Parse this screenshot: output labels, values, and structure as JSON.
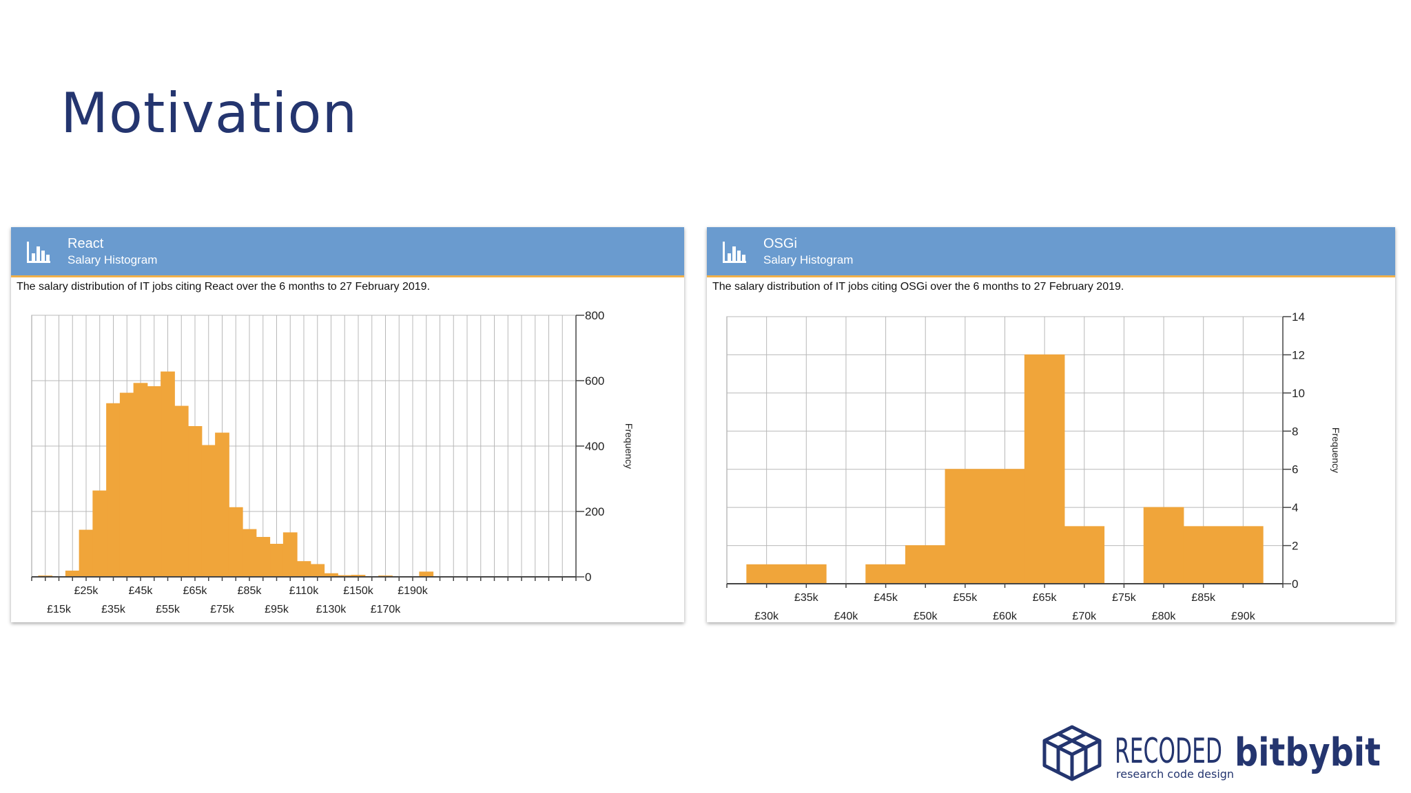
{
  "slide": {
    "title": "Motivation"
  },
  "panels": [
    {
      "name": "React",
      "subtitle": "Salary Histogram",
      "description": "The salary distribution of IT jobs citing React over the 6 months to 27 February 2019."
    },
    {
      "name": "OSGi",
      "subtitle": "Salary Histogram",
      "description": "The salary distribution of IT jobs citing OSGi over the 6 months to 27 February 2019."
    }
  ],
  "logos": {
    "recoded_main": "RECODED",
    "recoded_tagline": "research code design",
    "bitbybit": "bitbybit"
  },
  "colors": {
    "header": "#6a9bcf",
    "bar": "#f0a53a",
    "accent": "#f0b04a",
    "title": "#24356f"
  },
  "chart_data": [
    {
      "type": "bar",
      "title": "React Salary Histogram",
      "ylabel": "Frequency",
      "xlabel": "",
      "xlim": [
        0,
        200
      ],
      "ylim": [
        0,
        800
      ],
      "yticks": [
        0,
        200,
        400,
        600,
        800
      ],
      "x_tick_labels_upper": [
        {
          "x": 20,
          "label": "£25k"
        },
        {
          "x": 40,
          "label": "£45k"
        },
        {
          "x": 60,
          "label": "£65k"
        },
        {
          "x": 80,
          "label": "£85k"
        },
        {
          "x": 100,
          "label": "£110k"
        },
        {
          "x": 120,
          "label": "£150k"
        },
        {
          "x": 140,
          "label": "£190k"
        }
      ],
      "x_tick_labels_lower": [
        {
          "x": 10,
          "label": "£15k"
        },
        {
          "x": 30,
          "label": "£35k"
        },
        {
          "x": 50,
          "label": "£55k"
        },
        {
          "x": 70,
          "label": "£75k"
        },
        {
          "x": 90,
          "label": "£95k"
        },
        {
          "x": 110,
          "label": "£130k"
        },
        {
          "x": 130,
          "label": "£170k"
        }
      ],
      "bins": [
        {
          "x0": 2.5,
          "x1": 7.5,
          "value": 3
        },
        {
          "x0": 12.5,
          "x1": 17.5,
          "value": 18
        },
        {
          "x0": 17.5,
          "x1": 22.5,
          "value": 143
        },
        {
          "x0": 22.5,
          "x1": 27.5,
          "value": 263
        },
        {
          "x0": 27.5,
          "x1": 32.5,
          "value": 530
        },
        {
          "x0": 32.5,
          "x1": 37.5,
          "value": 562
        },
        {
          "x0": 37.5,
          "x1": 42.5,
          "value": 592
        },
        {
          "x0": 42.5,
          "x1": 47.5,
          "value": 582
        },
        {
          "x0": 47.5,
          "x1": 52.5,
          "value": 627
        },
        {
          "x0": 52.5,
          "x1": 57.5,
          "value": 522
        },
        {
          "x0": 57.5,
          "x1": 62.5,
          "value": 460
        },
        {
          "x0": 62.5,
          "x1": 67.5,
          "value": 402
        },
        {
          "x0": 67.5,
          "x1": 72.5,
          "value": 440
        },
        {
          "x0": 72.5,
          "x1": 77.5,
          "value": 212
        },
        {
          "x0": 77.5,
          "x1": 82.5,
          "value": 145
        },
        {
          "x0": 82.5,
          "x1": 87.5,
          "value": 121
        },
        {
          "x0": 87.5,
          "x1": 92.5,
          "value": 100
        },
        {
          "x0": 92.5,
          "x1": 97.5,
          "value": 135
        },
        {
          "x0": 97.5,
          "x1": 102.5,
          "value": 47
        },
        {
          "x0": 102.5,
          "x1": 107.5,
          "value": 38
        },
        {
          "x0": 107.5,
          "x1": 112.5,
          "value": 10
        },
        {
          "x0": 112.5,
          "x1": 117.5,
          "value": 4
        },
        {
          "x0": 117.5,
          "x1": 122.5,
          "value": 5
        },
        {
          "x0": 127.5,
          "x1": 132.5,
          "value": 3
        },
        {
          "x0": 142.5,
          "x1": 147.5,
          "value": 15
        }
      ]
    },
    {
      "type": "bar",
      "title": "OSGi Salary Histogram",
      "ylabel": "Frequency",
      "xlabel": "",
      "xlim": [
        25,
        95
      ],
      "ylim": [
        0,
        14
      ],
      "yticks": [
        0,
        2,
        4,
        6,
        8,
        10,
        12,
        14
      ],
      "x_tick_labels_upper": [
        {
          "x": 35,
          "label": "£35k"
        },
        {
          "x": 45,
          "label": "£45k"
        },
        {
          "x": 55,
          "label": "£55k"
        },
        {
          "x": 65,
          "label": "£65k"
        },
        {
          "x": 75,
          "label": "£75k"
        },
        {
          "x": 85,
          "label": "£85k"
        }
      ],
      "x_tick_labels_lower": [
        {
          "x": 30,
          "label": "£30k"
        },
        {
          "x": 40,
          "label": "£40k"
        },
        {
          "x": 50,
          "label": "£50k"
        },
        {
          "x": 60,
          "label": "£60k"
        },
        {
          "x": 70,
          "label": "£70k"
        },
        {
          "x": 80,
          "label": "£80k"
        },
        {
          "x": 90,
          "label": "£90k"
        }
      ],
      "bins": [
        {
          "x0": 27.5,
          "x1": 37.5,
          "value": 1
        },
        {
          "x0": 42.5,
          "x1": 47.5,
          "value": 1
        },
        {
          "x0": 47.5,
          "x1": 52.5,
          "value": 2
        },
        {
          "x0": 52.5,
          "x1": 62.5,
          "value": 6
        },
        {
          "x0": 62.5,
          "x1": 67.5,
          "value": 12
        },
        {
          "x0": 67.5,
          "x1": 72.5,
          "value": 3
        },
        {
          "x0": 77.5,
          "x1": 82.5,
          "value": 4
        },
        {
          "x0": 82.5,
          "x1": 92.5,
          "value": 3
        }
      ]
    }
  ]
}
